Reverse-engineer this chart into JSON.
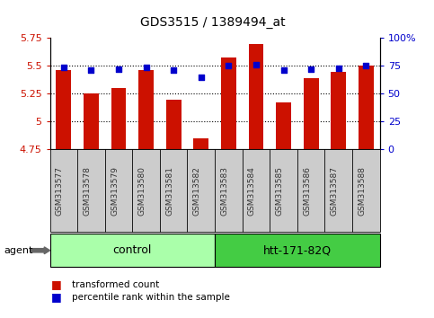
{
  "title": "GDS3515 / 1389494_at",
  "samples": [
    "GSM313577",
    "GSM313578",
    "GSM313579",
    "GSM313580",
    "GSM313581",
    "GSM313582",
    "GSM313583",
    "GSM313584",
    "GSM313585",
    "GSM313586",
    "GSM313587",
    "GSM313588"
  ],
  "bar_values": [
    5.46,
    5.25,
    5.3,
    5.46,
    5.2,
    4.85,
    5.58,
    5.7,
    5.17,
    5.39,
    5.45,
    5.5
  ],
  "percentile_values": [
    74,
    71,
    72,
    74,
    71,
    65,
    75,
    76,
    71,
    72,
    73,
    75
  ],
  "bar_color": "#cc1100",
  "dot_color": "#0000cc",
  "ylim_left": [
    4.75,
    5.75
  ],
  "ylim_right": [
    0,
    100
  ],
  "yticks_left": [
    4.75,
    5.0,
    5.25,
    5.5,
    5.75
  ],
  "yticks_right": [
    0,
    25,
    50,
    75,
    100
  ],
  "ytick_labels_left": [
    "4.75",
    "5",
    "5.25",
    "5.5",
    "5.75"
  ],
  "ytick_labels_right": [
    "0",
    "25",
    "50",
    "75",
    "100%"
  ],
  "grid_values": [
    5.0,
    5.25,
    5.5
  ],
  "control_samples": 6,
  "group1_label": "control",
  "group2_label": "htt-171-82Q",
  "agent_label": "agent",
  "legend1": "transformed count",
  "legend2": "percentile rank within the sample",
  "control_color": "#aaffaa",
  "treatment_color": "#44cc44",
  "tick_bg_color": "#cccccc",
  "bar_bottom": 4.75,
  "bar_width": 0.55
}
